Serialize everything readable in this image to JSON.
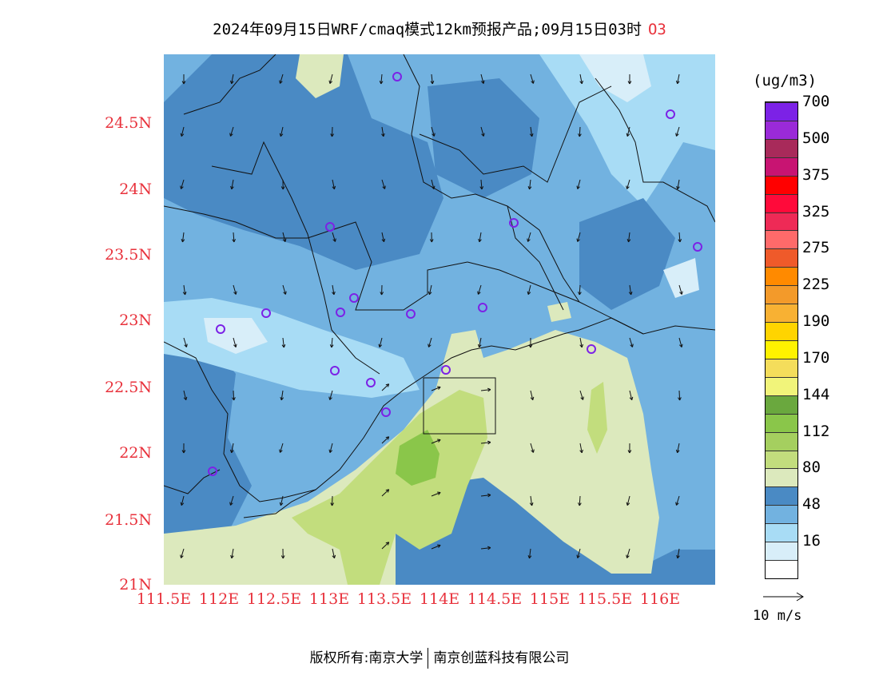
{
  "title": {
    "main": "2024年09月15日WRF/cmaq模式12km预报产品;09月15日03时",
    "pollutant": "O3"
  },
  "axes": {
    "y_labels": [
      "24.5N",
      "24N",
      "23.5N",
      "23N",
      "22.5N",
      "22N",
      "21.5N",
      "21N"
    ],
    "x_labels": [
      "111.5E",
      "112E",
      "112.5E",
      "113E",
      "113.5E",
      "114E",
      "114.5E",
      "115E",
      "115.5E",
      "116E"
    ]
  },
  "colorbar": {
    "unit": "(ug/m3)",
    "labels": [
      "16",
      "48",
      "80",
      "112",
      "144",
      "170",
      "190",
      "225",
      "275",
      "325",
      "375",
      "500",
      "700"
    ],
    "colors": [
      "#ffffff",
      "#d8eef9",
      "#a8dcf5",
      "#72b2e0",
      "#4a8ac4",
      "#dce9bd",
      "#c2dd7d",
      "#a5cf5f",
      "#8ac64a",
      "#6aa83e",
      "#f1f47a",
      "#f4dd5b",
      "#fff200",
      "#ffd400",
      "#f8b133",
      "#f39a2a",
      "#ff8a00",
      "#ef5a2a",
      "#ff6a6a",
      "#ee2a56",
      "#ff0a3a",
      "#ff0000",
      "#c81472",
      "#a82a5a",
      "#9a2ad8",
      "#7c22e6"
    ]
  },
  "wind_legend": {
    "label": "10 m/s"
  },
  "footer": {
    "left": "版权所有:南京大学",
    "right": "南京创蓝科技有限公司"
  },
  "map_colors": {
    "c_deep": "#4a8ac4",
    "c_mid": "#72b2e0",
    "c_light": "#a8dcf5",
    "c_pale": "#d8eef9",
    "c_green_pale": "#dce9bd",
    "c_green_mid": "#c2dd7d",
    "c_green": "#8ac64a"
  }
}
